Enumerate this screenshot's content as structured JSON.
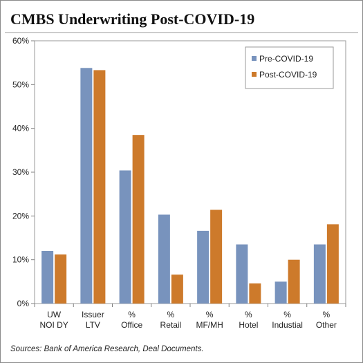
{
  "title": "CMBS Underwriting Post-COVID-19",
  "source": "Sources: Bank of America Research, Deal Documents.",
  "colors": {
    "pre": "#7893bd",
    "post": "#cd7a2b",
    "axis": "#808080",
    "plot_border": "#9a9a9a"
  },
  "chart_data": {
    "type": "bar",
    "title": "CMBS Underwriting Post-COVID-19",
    "xlabel": "",
    "ylabel": "",
    "ylim": [
      0,
      60
    ],
    "yticks": [
      0,
      10,
      20,
      30,
      40,
      50,
      60
    ],
    "ytick_labels": [
      "0%",
      "10%",
      "20%",
      "30%",
      "40%",
      "50%",
      "60%"
    ],
    "grid": false,
    "legend_position": "top-right",
    "categories": [
      [
        "UW",
        "NOI DY"
      ],
      [
        "Issuer",
        "LTV"
      ],
      [
        "%",
        "Office"
      ],
      [
        "%",
        "Retail"
      ],
      [
        "%",
        "MF/MH"
      ],
      [
        "%",
        "Hotel"
      ],
      [
        "%",
        "Industial"
      ],
      [
        "%",
        "Other"
      ]
    ],
    "series": [
      {
        "name": "Pre-COVID-19",
        "values": [
          12.0,
          53.8,
          30.4,
          20.3,
          16.6,
          13.5,
          5.0,
          13.5
        ]
      },
      {
        "name": "Post-COVID-19",
        "values": [
          11.2,
          53.3,
          38.5,
          6.6,
          21.4,
          4.6,
          10.0,
          18.1
        ]
      }
    ]
  }
}
